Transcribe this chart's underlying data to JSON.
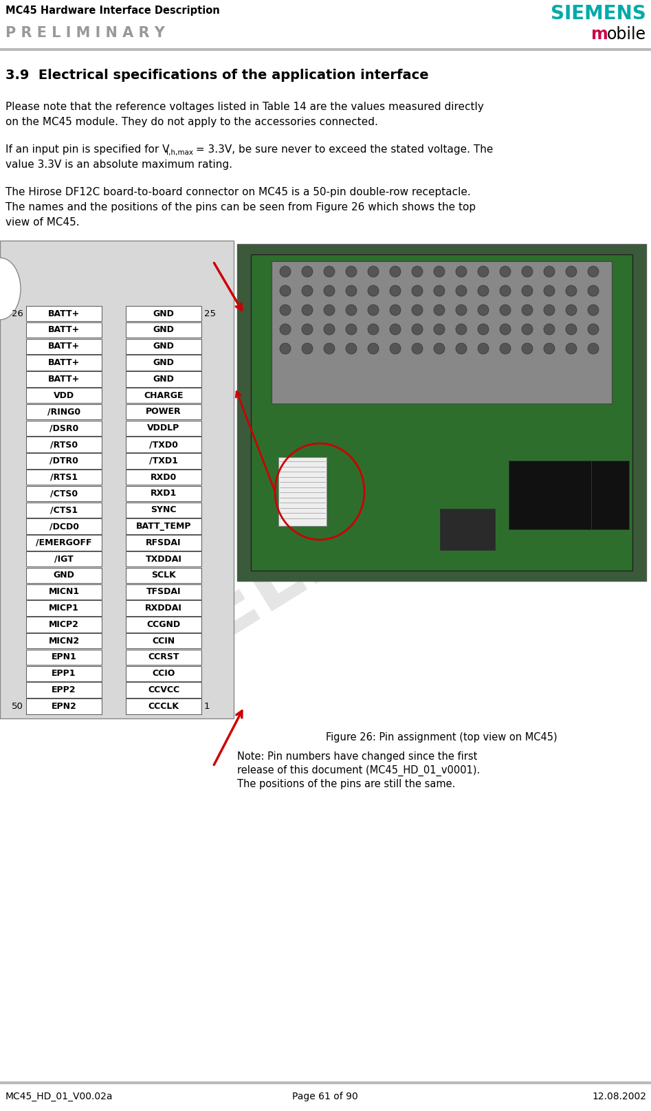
{
  "header_title": "MC45 Hardware Interface Description",
  "header_preliminary": "P R E L I M I N A R Y",
  "siemens_text": "SIEMENS",
  "mobile_m": "m",
  "mobile_rest": "obile",
  "section_title": "3.9  Electrical specifications of the application interface",
  "para1_line1": "Please note that the reference voltages listed in Table 14 are the values measured directly",
  "para1_line2": "on the MC45 module. They do not apply to the accessories connected.",
  "para2_pre": "If an input pin is specified for V",
  "para2_sub": "i,h,max",
  "para2_post": " = 3.3V, be sure never to exceed the stated voltage. The",
  "para2_line2": "value 3.3V is an absolute maximum rating.",
  "para3_line1": "The Hirose DF12C board-to-board connector on MC45 is a 50-pin double-row receptacle.",
  "para3_line2": "The names and the positions of the pins can be seen from Figure 26 which shows the top",
  "para3_line3": "view of MC45.",
  "figure_caption": "Figure 26: Pin assignment (top view on MC45)",
  "note_text_line1": "Note: Pin numbers have changed since the first",
  "note_text_line2": "release of this document (MC45_HD_01_v0001).",
  "note_text_line3": "The positions of the pins are still the same.",
  "footer_left": "MC45_HD_01_V00.02a",
  "footer_center": "Page 61 of 90",
  "footer_right": "12.08.2002",
  "left_pins": [
    "BATT+",
    "BATT+",
    "BATT+",
    "BATT+",
    "BATT+",
    "VDD",
    "/RING0",
    "/DSR0",
    "/RTS0",
    "/DTR0",
    "/RTS1",
    "/CTS0",
    "/CTS1",
    "/DCD0",
    "/EMERGOFF",
    "/IGT",
    "GND",
    "MICN1",
    "MICP1",
    "MICP2",
    "MICN2",
    "EPN1",
    "EPP1",
    "EPP2",
    "EPN2"
  ],
  "right_pins": [
    "GND",
    "GND",
    "GND",
    "GND",
    "GND",
    "CHARGE",
    "POWER",
    "VDDLP",
    "/TXD0",
    "/TXD1",
    "RXD0",
    "RXD1",
    "SYNC",
    "BATT_TEMP",
    "RFSDAI",
    "TXDDAI",
    "SCLK",
    "TFSDAI",
    "RXDDAI",
    "CCGND",
    "CCIN",
    "CCRST",
    "CCIO",
    "CCVCC",
    "CCCLK"
  ],
  "left_start_num": "26",
  "right_start_num": "25",
  "left_end_num": "50",
  "right_end_num": "1",
  "bg_color": "#ffffff",
  "diagram_bg": "#d8d8d8",
  "box_fill": "#ffffff",
  "box_edge": "#555555",
  "text_color": "#000000",
  "siemens_color": "#00aaaa",
  "mobile_m_color": "#cc0044",
  "prelim_color": "#999999",
  "watermark_color": "#cccccc",
  "header_line_color": "#bbbbbb",
  "footer_line_color": "#bbbbbb",
  "arrow_color": "#cc0000",
  "num_pins": 25
}
